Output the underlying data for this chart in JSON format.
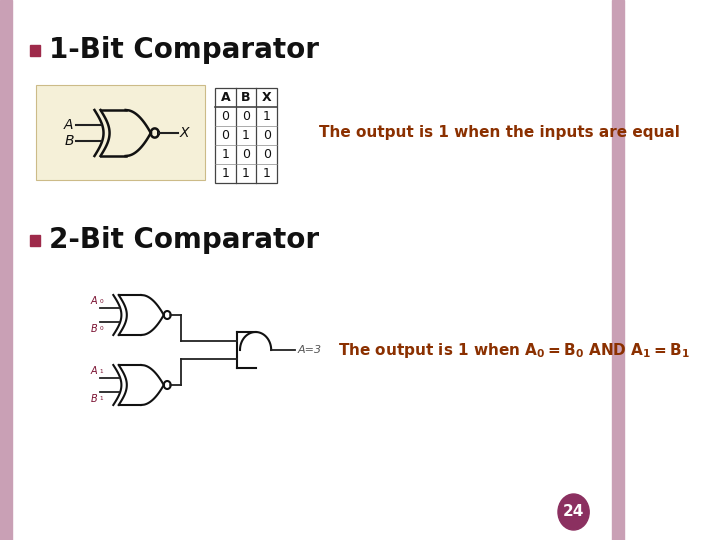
{
  "bg_color": "#ffffff",
  "border_color": "#c9a0b5",
  "title1": "1-Bit Comparator",
  "title2": "2-Bit Comparator",
  "bullet_color": "#9e2a4a",
  "title_color": "#111111",
  "orange_color": "#8B3000",
  "table_bg": "#f5f0d8",
  "page_num": "24",
  "page_circle_color": "#8B3060",
  "text1": "The output is 1 when the inputs are equal",
  "label_color": "#7a1030",
  "wire_color": "#222222",
  "gate_color": "#111111"
}
